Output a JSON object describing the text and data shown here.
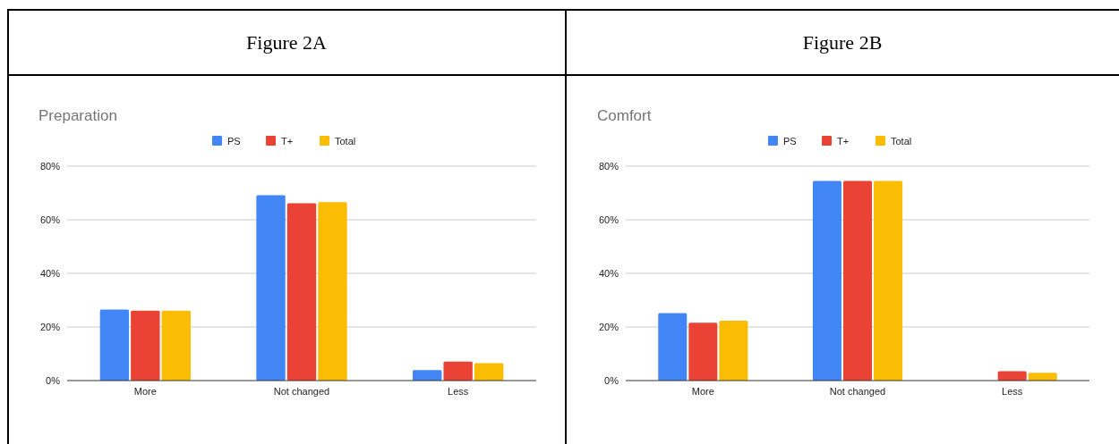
{
  "chart_data": [
    {
      "type": "bar",
      "title": "Figure 2A",
      "subtitle": "Preparation",
      "categories": [
        "More",
        "Not changed",
        "Less"
      ],
      "series": [
        {
          "name": "PS",
          "color": "#4285f4",
          "values": [
            26.5,
            69.2,
            3.9
          ]
        },
        {
          "name": "T+",
          "color": "#ea4335",
          "values": [
            26.1,
            66.2,
            7.1
          ]
        },
        {
          "name": "Total",
          "color": "#fbbc04",
          "values": [
            26.1,
            66.6,
            6.5
          ]
        }
      ],
      "ylim": [
        0,
        80
      ],
      "yticks": [
        {
          "value": 0,
          "label": "0%"
        },
        {
          "value": 20,
          "label": "20%"
        },
        {
          "value": 40,
          "label": "40%"
        },
        {
          "value": 60,
          "label": "60%"
        },
        {
          "value": 80,
          "label": "80%"
        }
      ],
      "grid": "y",
      "legend": "top"
    },
    {
      "type": "bar",
      "title": "Figure 2B",
      "subtitle": "Comfort",
      "categories": [
        "More",
        "Not changed",
        "Less"
      ],
      "series": [
        {
          "name": "PS",
          "color": "#4285f4",
          "values": [
            25.2,
            74.5,
            0
          ]
        },
        {
          "name": "T+",
          "color": "#ea4335",
          "values": [
            21.6,
            74.5,
            3.5
          ]
        },
        {
          "name": "Total",
          "color": "#fbbc04",
          "values": [
            22.3,
            74.5,
            2.9
          ]
        }
      ],
      "ylim": [
        0,
        80
      ],
      "yticks": [
        {
          "value": 0,
          "label": "0%"
        },
        {
          "value": 20,
          "label": "20%"
        },
        {
          "value": 40,
          "label": "40%"
        },
        {
          "value": 60,
          "label": "60%"
        },
        {
          "value": 80,
          "label": "80%"
        }
      ],
      "grid": "y",
      "legend": "top"
    }
  ]
}
